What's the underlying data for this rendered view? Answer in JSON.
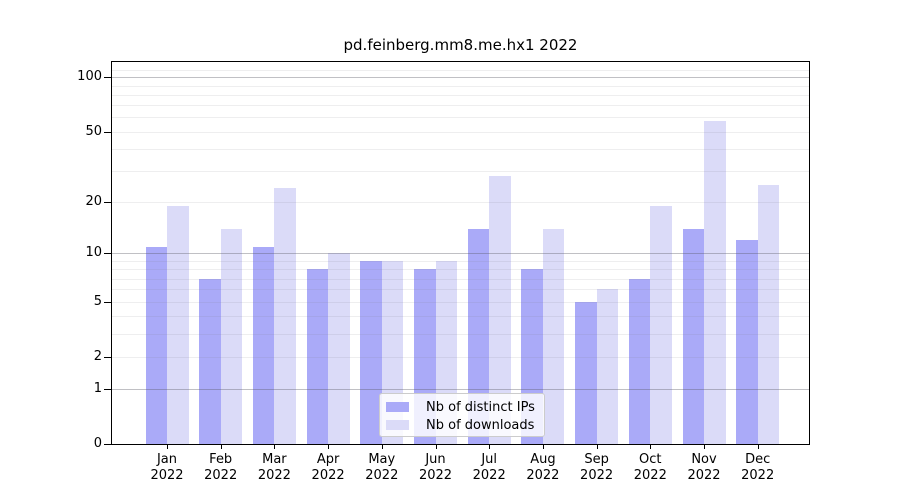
{
  "title": "pd.feinberg.mm8.me.hx1 2022",
  "chart_data": {
    "type": "bar",
    "title": "pd.feinberg.mm8.me.hx1 2022",
    "y_scale": "log10(1+x)",
    "categories": [
      "Jan",
      "Feb",
      "Mar",
      "Apr",
      "May",
      "Jun",
      "Jul",
      "Aug",
      "Sep",
      "Oct",
      "Nov",
      "Dec"
    ],
    "category_year": "2022",
    "series": [
      {
        "name": "Nb of distinct IPs",
        "color": "#aaaaf8",
        "values": [
          11,
          7,
          11,
          8,
          9,
          8,
          14,
          8,
          5,
          7,
          14,
          12
        ]
      },
      {
        "name": "Nb of downloads",
        "color": "#dbdbf8",
        "values": [
          19,
          14,
          24,
          10,
          9,
          9,
          28,
          14,
          6,
          19,
          57,
          25
        ]
      }
    ],
    "y_ticks": [
      0,
      1,
      2,
      5,
      10,
      20,
      50,
      100
    ],
    "major_gridlines": [
      1,
      10,
      100
    ],
    "minor_gridlines": [
      2,
      3,
      4,
      5,
      6,
      7,
      8,
      9,
      20,
      30,
      40,
      50,
      60,
      70,
      80,
      90,
      110
    ],
    "ylim": [
      0,
      120
    ],
    "grid": true,
    "legend_position": "bottom-center-inside",
    "xlabel": "",
    "ylabel": ""
  }
}
